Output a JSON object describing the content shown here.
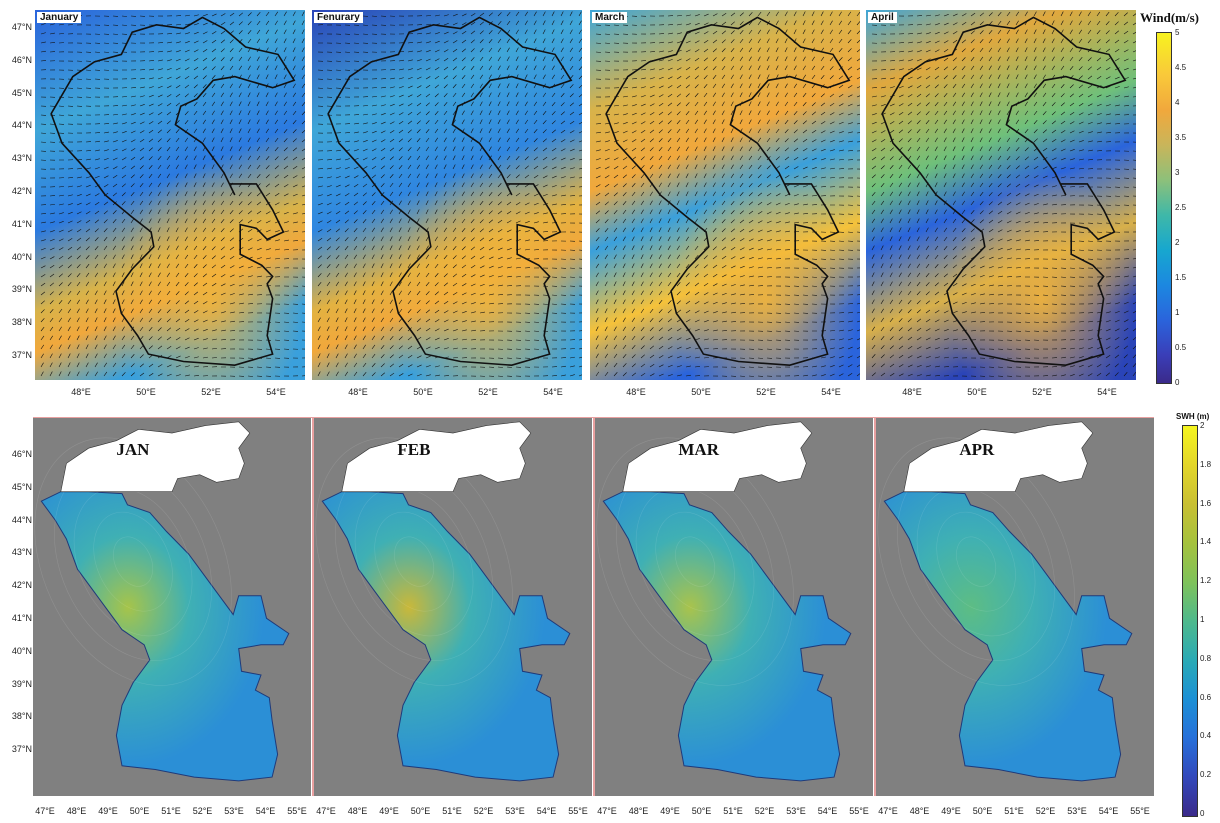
{
  "wind_panel": {
    "months": [
      "January",
      "Fenurary",
      "March",
      "April"
    ],
    "y_ticks": [
      "47°N",
      "46°N",
      "45°N",
      "44°N",
      "43°N",
      "42°N",
      "41°N",
      "40°N",
      "39°N",
      "38°N",
      "37°N"
    ],
    "x_ticks": [
      "48°E",
      "50°E",
      "52°E",
      "54°E"
    ],
    "colorbar": {
      "title": "Wind(m/s)",
      "ticks": [
        "5",
        "4.5",
        "4",
        "3.5",
        "3",
        "2.5",
        "2",
        "1.5",
        "1",
        "0.5",
        "0"
      ]
    }
  },
  "swh_panel": {
    "months": [
      "JAN",
      "FEB",
      "MAR",
      "APR"
    ],
    "y_ticks": [
      "46°N",
      "45°N",
      "44°N",
      "43°N",
      "42°N",
      "41°N",
      "40°N",
      "39°N",
      "38°N",
      "37°N"
    ],
    "x_ticks": [
      "47°E",
      "48°E",
      "49°E",
      "50°E",
      "51°E",
      "52°E",
      "53°E",
      "54°E",
      "55°E"
    ],
    "colorbar": {
      "title": "SWH (m)",
      "ticks": [
        "2",
        "1.8",
        "1.6",
        "1.4",
        "1.2",
        "1",
        "0.8",
        "0.6",
        "0.4",
        "0.2",
        "0"
      ]
    }
  },
  "colors": {
    "land_gray": "#808080",
    "sea_border": "#222222",
    "pink_separator": "#e8a0a0"
  }
}
